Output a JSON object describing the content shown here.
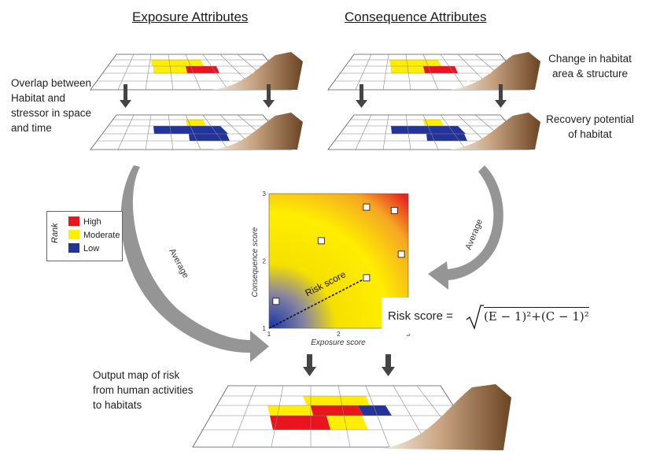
{
  "headers": {
    "exposure": "Exposure Attributes",
    "consequence": "Consequence Attributes"
  },
  "labels": {
    "overlap": [
      "Overlap between",
      "Habitat and",
      "stressor in space",
      "and time"
    ],
    "change": [
      "Change in habitat",
      "area & structure"
    ],
    "recovery": [
      "Recovery potential",
      "of habitat"
    ],
    "output": [
      "Output map of risk",
      "from human activities",
      "to habitats"
    ],
    "average_left": "Average",
    "average_right": "Average",
    "shoreline_1": "Shoreline",
    "shoreline_2": "Shoreline"
  },
  "legend": {
    "title": "Rank",
    "items": [
      {
        "label": "High",
        "color": "#e8141e"
      },
      {
        "label": "Moderate",
        "color": "#ffee00"
      },
      {
        "label": "Low",
        "color": "#223399"
      }
    ]
  },
  "plot": {
    "xlabel": "Exposure score",
    "ylabel": "Consequence score",
    "risk_label": "Risk score",
    "x_ticks": [
      "1",
      "2",
      "3"
    ],
    "y_ticks": [
      "1",
      "2",
      "3"
    ]
  },
  "formula": {
    "lhs": "Risk score =",
    "rhs": "(E − 1)²+(C − 1)²"
  },
  "chart_data": {
    "type": "scatter",
    "title": "",
    "xlabel": "Exposure score",
    "ylabel": "Consequence score",
    "xlim": [
      1,
      3
    ],
    "ylim": [
      1,
      3
    ],
    "x": [
      1.1,
      1.75,
      2.4,
      2.4,
      2.8,
      2.9
    ],
    "y": [
      1.4,
      2.3,
      1.75,
      2.8,
      2.75,
      2.1
    ],
    "annotations": [
      "Risk score"
    ]
  },
  "colors": {
    "high": "#e8141e",
    "moderate": "#ffee00",
    "low": "#223399",
    "arrow": "#8a8a8a",
    "down_arrow": "#444444"
  }
}
